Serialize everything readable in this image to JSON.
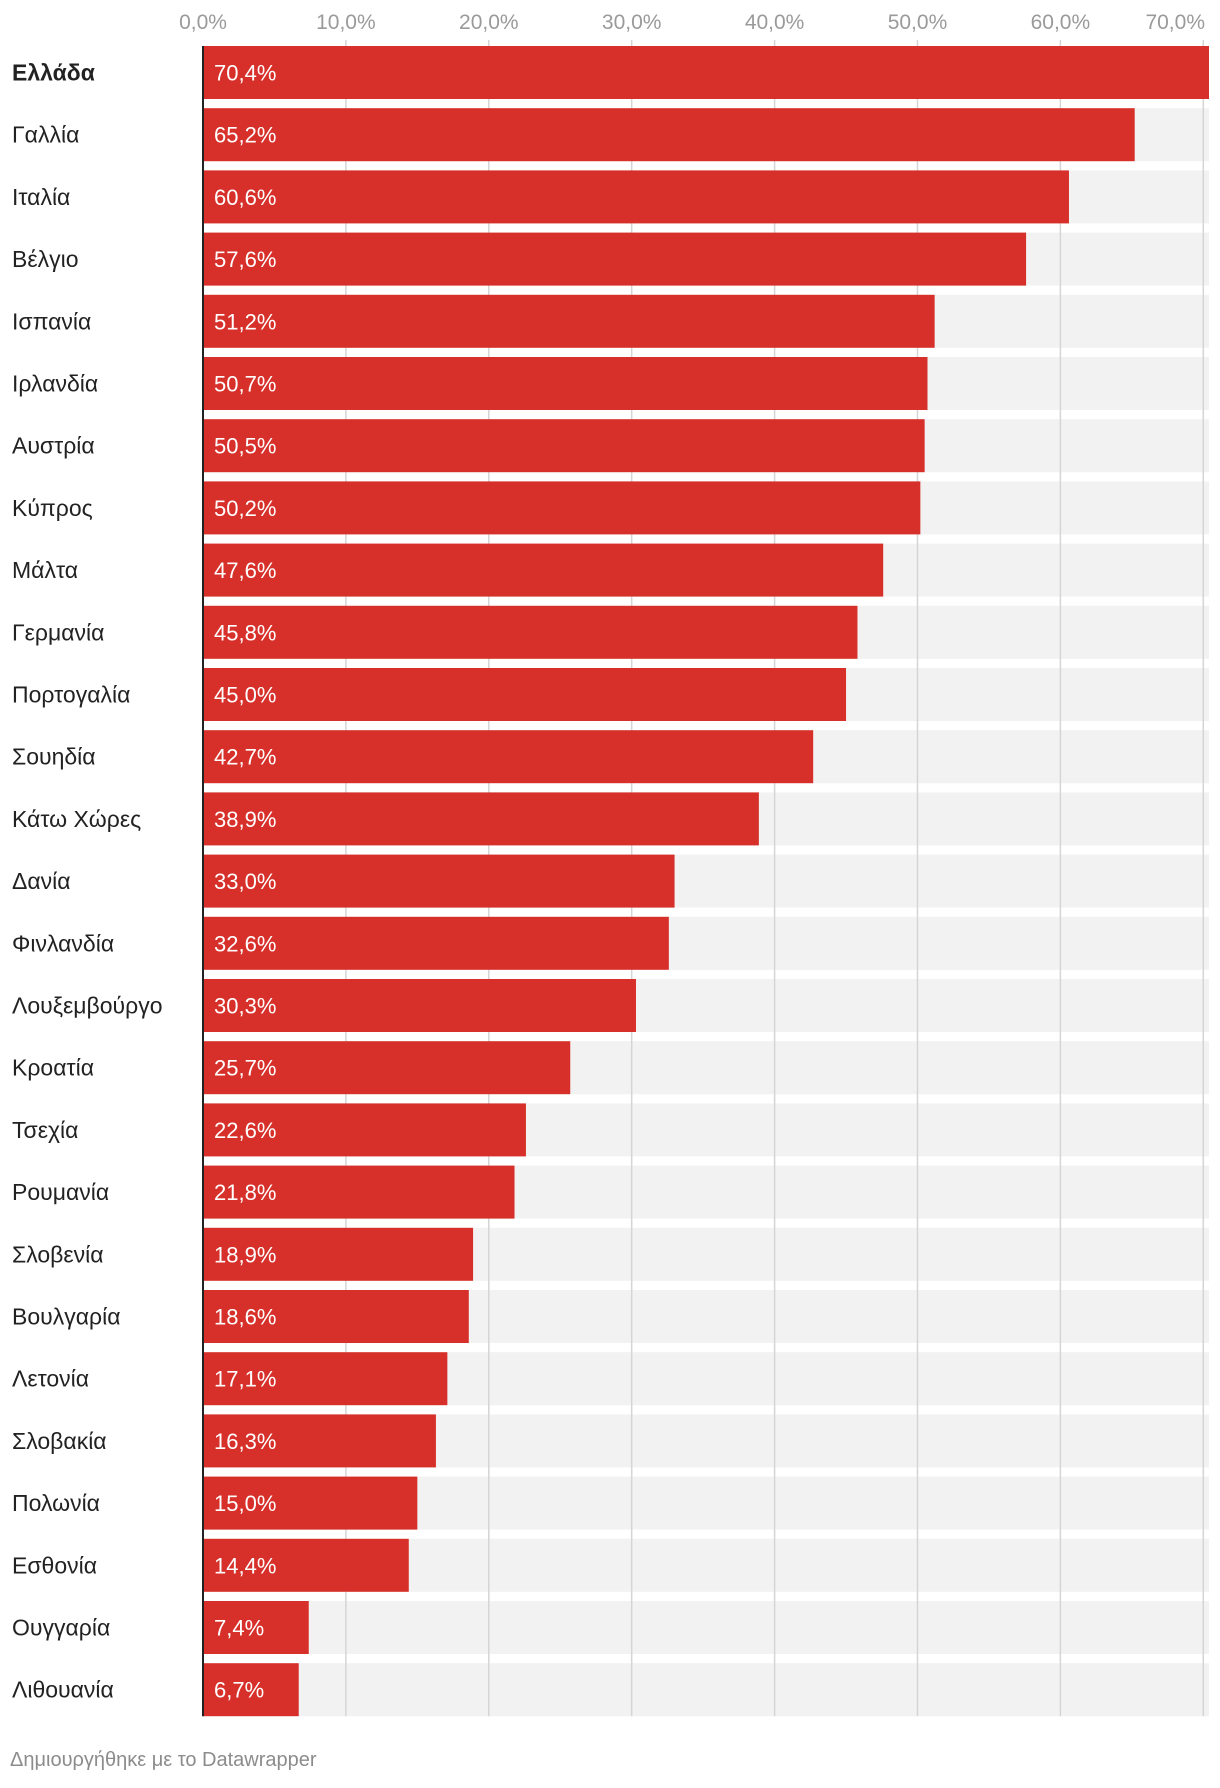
{
  "colors": {
    "bar": "#d7302a",
    "track": "#f2f2f2",
    "grid": "#d5d5d5",
    "axis": "#222222"
  },
  "footer": {
    "credit": "Δημιουργήθηκε με το Datawrapper"
  },
  "chart_data": {
    "type": "bar",
    "orientation": "horizontal",
    "title": "",
    "xlabel": "",
    "ylabel": "",
    "xlim": [
      0,
      70.4
    ],
    "grid": true,
    "ticks": [
      {
        "value": 0,
        "label": "0,0%"
      },
      {
        "value": 10,
        "label": "10,0%"
      },
      {
        "value": 20,
        "label": "20,0%"
      },
      {
        "value": 30,
        "label": "30,0%"
      },
      {
        "value": 40,
        "label": "40,0%"
      },
      {
        "value": 50,
        "label": "50,0%"
      },
      {
        "value": 60,
        "label": "60,0%"
      },
      {
        "value": 70,
        "label": "70,0%"
      }
    ],
    "highlight": "Ελλάδα",
    "categories": [
      "Ελλάδα",
      "Γαλλία",
      "Ιταλία",
      "Βέλγιο",
      "Ισπανία",
      "Ιρλανδία",
      "Αυστρία",
      "Κύπρος",
      "Μάλτα",
      "Γερμανία",
      "Πορτογαλία",
      "Σουηδία",
      "Κάτω Χώρες",
      "Δανία",
      "Φινλανδία",
      "Λουξεμβούργο",
      "Κροατία",
      "Τσεχία",
      "Ρουμανία",
      "Σλοβενία",
      "Βουλγαρία",
      "Λετονία",
      "Σλοβακία",
      "Πολωνία",
      "Εσθονία",
      "Ουγγαρία",
      "Λιθουανία"
    ],
    "values": [
      70.4,
      65.2,
      60.6,
      57.6,
      51.2,
      50.7,
      50.5,
      50.2,
      47.6,
      45.8,
      45.0,
      42.7,
      38.9,
      33.0,
      32.6,
      30.3,
      25.7,
      22.6,
      21.8,
      18.9,
      18.6,
      17.1,
      16.3,
      15.0,
      14.4,
      7.4,
      6.7
    ],
    "value_labels": [
      "70,4%",
      "65,2%",
      "60,6%",
      "57,6%",
      "51,2%",
      "50,7%",
      "50,5%",
      "50,2%",
      "47,6%",
      "45,8%",
      "45,0%",
      "42,7%",
      "38,9%",
      "33,0%",
      "32,6%",
      "30,3%",
      "25,7%",
      "22,6%",
      "21,8%",
      "18,9%",
      "18,6%",
      "17,1%",
      "16,3%",
      "15,0%",
      "14,4%",
      "7,4%",
      "6,7%"
    ]
  }
}
